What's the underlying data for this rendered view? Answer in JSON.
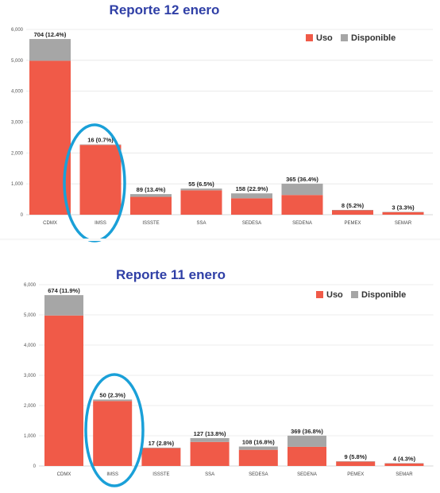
{
  "colors": {
    "uso": "#f05a48",
    "disponible": "#a6a6a6",
    "highlight": "#1aa0d8",
    "title": "#2f3fa6"
  },
  "legend": {
    "uso": "Uso",
    "disponible": "Disponible"
  },
  "chart_data": [
    {
      "type": "bar",
      "stacked": true,
      "title": "Reporte 12 enero",
      "legend_position": "top-right",
      "grid": true,
      "ylim": [
        0,
        6000
      ],
      "yticks": [
        "0",
        "1,000",
        "2,000",
        "3,000",
        "4,000",
        "5,000",
        "6,000"
      ],
      "categories": [
        "CDMX",
        "IMSS",
        "ISSSTE",
        "SSA",
        "SEDESA",
        "SEDENA",
        "PEMEX",
        "SEMAR"
      ],
      "series": [
        {
          "name": "Uso",
          "values": [
            4985,
            2260,
            578,
            790,
            532,
            638,
            147,
            88
          ]
        },
        {
          "name": "Disponible",
          "values": [
            704,
            16,
            89,
            55,
            158,
            365,
            8,
            3
          ]
        }
      ],
      "data_labels": [
        "704 (12.4%)",
        "16 (0.7%)",
        "89 (13.4%)",
        "55 (6.5%)",
        "158 (22.9%)",
        "365 (36.4%)",
        "8 (5.2%)",
        "3 (3.3%)"
      ],
      "highlighted_category": "IMSS"
    },
    {
      "type": "bar",
      "stacked": true,
      "title": "Reporte 11 enero",
      "legend_position": "top-right",
      "grid": true,
      "ylim": [
        0,
        6000
      ],
      "yticks": [
        "0",
        "1,000",
        "2,000",
        "3,000",
        "4,000",
        "5,000",
        "6,000"
      ],
      "categories": [
        "CDMX",
        "IMSS",
        "ISSSTE",
        "SSA",
        "SEDESA",
        "SEDENA",
        "PEMEX",
        "SEMAR"
      ],
      "series": [
        {
          "name": "Uso",
          "values": [
            4980,
            2150,
            590,
            795,
            535,
            634,
            146,
            89
          ]
        },
        {
          "name": "Disponible",
          "values": [
            674,
            50,
            17,
            127,
            108,
            369,
            9,
            4
          ]
        }
      ],
      "data_labels": [
        "674 (11.9%)",
        "50 (2.3%)",
        "17 (2.8%)",
        "127 (13.8%)",
        "108 (16.8%)",
        "369 (36.8%)",
        "9 (5.8%)",
        "4 (4.3%)"
      ],
      "highlighted_category": "IMSS"
    }
  ]
}
